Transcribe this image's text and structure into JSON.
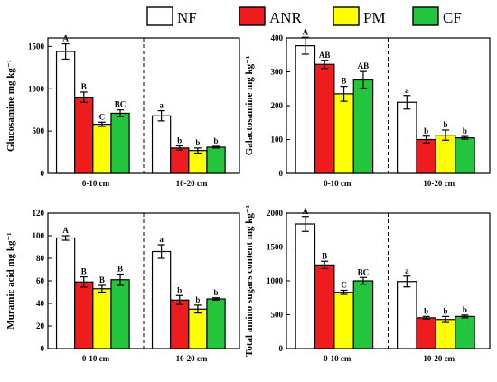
{
  "colors": {
    "NF": "#ffffff",
    "ANR": "#ee1c1c",
    "PM": "#ffff00",
    "CF": "#22c53c"
  },
  "legend": [
    "NF",
    "ANR",
    "PM",
    "CF"
  ],
  "chart_data": [
    {
      "type": "bar",
      "ylabel": "Glucosamine mg kg⁻¹",
      "ylim": [
        0,
        1600
      ],
      "yticks": [
        0,
        500,
        1000,
        1500
      ],
      "categories": [
        "0-10 cm",
        "10-20 cm"
      ],
      "series": [
        {
          "name": "NF",
          "values": [
            1440,
            680
          ],
          "errors": [
            90,
            60
          ],
          "letters": [
            "A",
            "a"
          ]
        },
        {
          "name": "ANR",
          "values": [
            900,
            300
          ],
          "errors": [
            60,
            25
          ],
          "letters": [
            "B",
            "b"
          ]
        },
        {
          "name": "PM",
          "values": [
            580,
            270
          ],
          "errors": [
            25,
            30
          ],
          "letters": [
            "C",
            "b"
          ]
        },
        {
          "name": "CF",
          "values": [
            710,
            310
          ],
          "errors": [
            40,
            10
          ],
          "letters": [
            "BC",
            "b"
          ]
        }
      ]
    },
    {
      "type": "bar",
      "ylabel": "Galactosamine mg kg⁻¹",
      "ylim": [
        0,
        400
      ],
      "yticks": [
        0,
        100,
        200,
        300,
        400
      ],
      "categories": [
        "0-10 cm",
        "10-20 cm"
      ],
      "series": [
        {
          "name": "NF",
          "values": [
            377,
            210
          ],
          "errors": [
            25,
            20
          ],
          "letters": [
            "A",
            "a"
          ]
        },
        {
          "name": "ANR",
          "values": [
            322,
            100
          ],
          "errors": [
            12,
            10
          ],
          "letters": [
            "AB",
            "b"
          ]
        },
        {
          "name": "PM",
          "values": [
            235,
            113
          ],
          "errors": [
            22,
            15
          ],
          "letters": [
            "B",
            "b"
          ]
        },
        {
          "name": "CF",
          "values": [
            276,
            105
          ],
          "errors": [
            25,
            4
          ],
          "letters": [
            "AB",
            "b"
          ]
        }
      ]
    },
    {
      "type": "bar",
      "ylabel": "Muramic acid mg kg⁻¹",
      "ylim": [
        0,
        120
      ],
      "yticks": [
        0,
        20,
        40,
        60,
        80,
        100,
        120
      ],
      "categories": [
        "0-10 cm",
        "10-20 cm"
      ],
      "series": [
        {
          "name": "NF",
          "values": [
            98,
            86
          ],
          "errors": [
            2,
            6
          ],
          "letters": [
            "A",
            "a"
          ]
        },
        {
          "name": "ANR",
          "values": [
            59,
            43
          ],
          "errors": [
            4.5,
            4
          ],
          "letters": [
            "B",
            "b"
          ]
        },
        {
          "name": "PM",
          "values": [
            53,
            35
          ],
          "errors": [
            3,
            3.5
          ],
          "letters": [
            "B",
            "b"
          ]
        },
        {
          "name": "CF",
          "values": [
            61,
            44
          ],
          "errors": [
            5,
            1
          ],
          "letters": [
            "B",
            "b"
          ]
        }
      ]
    },
    {
      "type": "bar",
      "ylabel": "Total amino sugars content mg kg⁻¹",
      "ylim": [
        0,
        2000
      ],
      "yticks": [
        0,
        500,
        1000,
        1500,
        2000
      ],
      "categories": [
        "0-10 cm",
        "10-20 cm"
      ],
      "series": [
        {
          "name": "NF",
          "values": [
            1840,
            990
          ],
          "errors": [
            110,
            80
          ],
          "letters": [
            "A",
            "a"
          ]
        },
        {
          "name": "ANR",
          "values": [
            1235,
            455
          ],
          "errors": [
            55,
            20
          ],
          "letters": [
            "B",
            "b"
          ]
        },
        {
          "name": "PM",
          "values": [
            830,
            430
          ],
          "errors": [
            30,
            45
          ],
          "letters": [
            "C",
            "b"
          ]
        },
        {
          "name": "CF",
          "values": [
            1000,
            475
          ],
          "errors": [
            50,
            20
          ],
          "letters": [
            "BC",
            "b"
          ]
        }
      ]
    }
  ]
}
